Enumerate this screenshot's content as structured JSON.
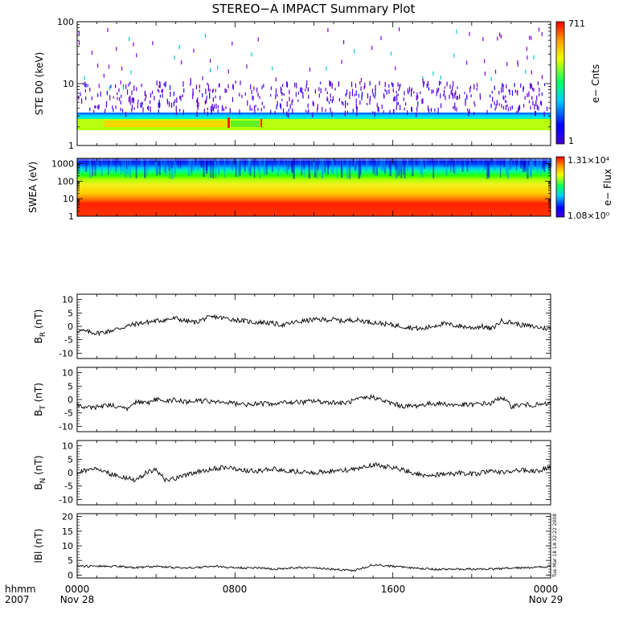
{
  "chart_data": [
    {
      "type": "heatmap",
      "title": "STEREO−A IMPACT Summary Plot",
      "ylabel": "STE D0 (keV)",
      "yscale": "log",
      "ylim": [
        1,
        100
      ],
      "yticks": [
        {
          "value": 1,
          "label": "1"
        },
        {
          "value": 10,
          "label": "10"
        },
        {
          "value": 100,
          "label": "100"
        }
      ],
      "colorbar": {
        "label": "e− Cnts",
        "max_label": "711",
        "min_label": "1",
        "range": [
          1,
          711
        ],
        "palette": "rainbow"
      },
      "notes": "Dense counts below ~3.5 keV; sparse purple/cyan pixels above"
    },
    {
      "type": "heatmap",
      "ylabel": "SWEA (eV)",
      "yscale": "log",
      "ylim": [
        1,
        2000
      ],
      "yticks": [
        {
          "value": 1,
          "label": "1"
        },
        {
          "value": 10,
          "label": "10"
        },
        {
          "value": 100,
          "label": "100"
        },
        {
          "value": 1000,
          "label": "1000"
        }
      ],
      "colorbar": {
        "label": "e− Flux",
        "max_label": "1.31×10⁴",
        "min_label": "1.08×10⁰",
        "range": [
          1.08,
          13100
        ],
        "palette": "rainbow"
      }
    },
    {
      "type": "line",
      "ylabel": "B_R (nT)",
      "ylabel_main": "B",
      "ylabel_sub": "R",
      "ylabel_unit": " (nT)",
      "ylim": [
        -12,
        12
      ],
      "yticks": [
        -10,
        -5,
        0,
        5,
        10
      ],
      "x_hours": [
        0,
        0.5,
        1,
        1.5,
        2,
        2.5,
        3,
        3.5,
        4,
        4.5,
        5,
        5.5,
        6,
        6.5,
        7,
        7.5,
        8,
        8.5,
        9,
        9.5,
        10,
        10.5,
        11,
        11.5,
        12,
        12.5,
        13,
        13.5,
        14,
        14.5,
        15,
        15.5,
        16,
        16.5,
        17,
        17.5,
        18,
        18.5,
        19,
        19.5,
        20,
        20.5,
        21,
        21.5,
        22,
        22.5,
        23,
        23.5,
        24
      ],
      "values": [
        -1.5,
        -2,
        -2.5,
        -2,
        -1,
        0,
        1,
        1.5,
        2,
        2.5,
        3,
        2,
        1.5,
        3,
        3.5,
        3,
        2.5,
        2,
        1.5,
        1.5,
        1,
        0.5,
        1.5,
        2,
        2.5,
        2.5,
        2.5,
        2,
        2.5,
        2,
        1.5,
        1,
        0.5,
        0,
        -0.5,
        -1,
        0,
        1,
        0.5,
        0,
        -0.5,
        0,
        -1,
        2,
        1.5,
        0.5,
        0,
        -0.5,
        -1
      ]
    },
    {
      "type": "line",
      "ylabel": "B_T (nT)",
      "ylabel_main": "B",
      "ylabel_sub": "T",
      "ylabel_unit": " (nT)",
      "ylim": [
        -12,
        12
      ],
      "yticks": [
        -10,
        -5,
        0,
        5,
        10
      ],
      "x_hours": [
        0,
        0.5,
        1,
        1.5,
        2,
        2.5,
        3,
        3.5,
        4,
        4.5,
        5,
        5.5,
        6,
        6.5,
        7,
        7.5,
        8,
        8.5,
        9,
        9.5,
        10,
        10.5,
        11,
        11.5,
        12,
        12.5,
        13,
        13.5,
        14,
        14.5,
        15,
        15.5,
        16,
        16.5,
        17,
        17.5,
        18,
        18.5,
        19,
        19.5,
        20,
        20.5,
        21,
        21.5,
        22,
        22.5,
        23,
        23.5,
        24
      ],
      "values": [
        -2,
        -3,
        -3,
        -2,
        -2.5,
        -3.5,
        -1,
        -1.5,
        0,
        -0.5,
        0,
        -1,
        -0.5,
        -0.5,
        -1,
        -1,
        -1.5,
        -2,
        -1.5,
        -1.5,
        -2,
        -1,
        -1,
        -1,
        -0.5,
        -1,
        -1,
        -1.5,
        -0.5,
        0.5,
        1,
        -0.5,
        -1.5,
        -2.5,
        -2.5,
        -2,
        -1.5,
        -1.5,
        -2,
        -2,
        -2,
        -1.5,
        -1.5,
        1,
        -2.5,
        -2,
        -2,
        -2,
        -1.5
      ]
    },
    {
      "type": "line",
      "ylabel": "B_N (nT)",
      "ylabel_main": "B",
      "ylabel_sub": "N",
      "ylabel_unit": " (nT)",
      "ylim": [
        -12,
        12
      ],
      "yticks": [
        -10,
        -5,
        0,
        5,
        10
      ],
      "x_hours": [
        0,
        0.5,
        1,
        1.5,
        2,
        2.5,
        3,
        3.5,
        4,
        4.5,
        5,
        5.5,
        6,
        6.5,
        7,
        7.5,
        8,
        8.5,
        9,
        9.5,
        10,
        10.5,
        11,
        11.5,
        12,
        12.5,
        13,
        13.5,
        14,
        14.5,
        15,
        15.5,
        16,
        16.5,
        17,
        17.5,
        18,
        18.5,
        19,
        19.5,
        20,
        20.5,
        21,
        21.5,
        22,
        22.5,
        23,
        23.5,
        24
      ],
      "values": [
        0,
        1,
        2,
        0,
        -1,
        -2,
        -3,
        0,
        1,
        -3,
        -2,
        -1,
        0,
        1,
        1.5,
        2,
        1.5,
        1,
        0.5,
        1,
        1.5,
        0.5,
        0.5,
        0,
        0,
        0.5,
        0.5,
        1,
        1,
        2,
        3,
        2.5,
        2,
        1,
        0,
        -1,
        -1,
        -0.5,
        -0.5,
        0,
        -0.5,
        0,
        0.5,
        0,
        0.5,
        1,
        0.5,
        1,
        2
      ]
    },
    {
      "type": "line",
      "ylabel": "|B| (nT)",
      "ylabel_main": "lBl",
      "ylabel_sub": "",
      "ylabel_unit": " (nT)",
      "ylim": [
        -1,
        21
      ],
      "yticks": [
        0,
        5,
        10,
        15,
        20
      ],
      "x_hours": [
        0,
        1,
        2,
        3,
        4,
        5,
        6,
        7,
        8,
        9,
        10,
        11,
        12,
        13,
        14,
        15,
        16,
        17,
        18,
        19,
        20,
        21,
        22,
        23,
        24
      ],
      "values": [
        3,
        3,
        3,
        2.5,
        3,
        2.5,
        2.5,
        3,
        2.5,
        2.5,
        2,
        2.5,
        2.5,
        2,
        1.5,
        3.5,
        3,
        2.5,
        2,
        2,
        2,
        2,
        2.5,
        2.5,
        3
      ]
    }
  ],
  "x_axis": {
    "row1_label": "hhmm",
    "row2_label": "2007",
    "ticks": [
      {
        "hour": 0,
        "label": "0000",
        "sub": "Nov 28"
      },
      {
        "hour": 8,
        "label": "0800",
        "sub": ""
      },
      {
        "hour": 16,
        "label": "1600",
        "sub": ""
      },
      {
        "hour": 24,
        "label": "0000",
        "sub": "Nov 29"
      }
    ]
  },
  "timestamp": "Tue Mar 18 14:32:22 2008"
}
